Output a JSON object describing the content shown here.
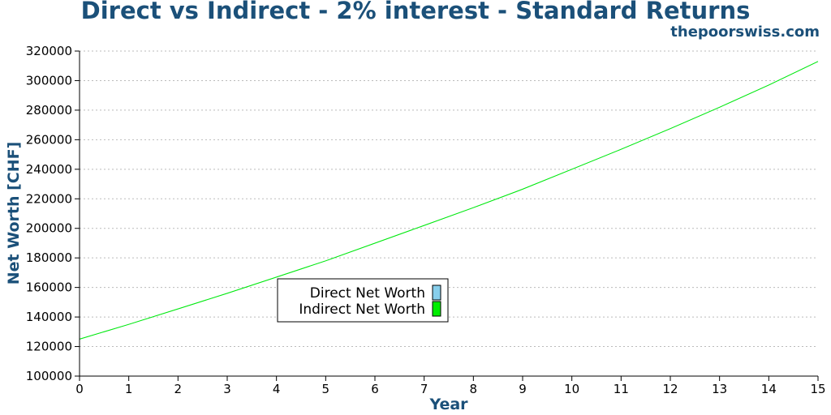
{
  "header": {
    "title": "Direct vs Indirect - 2% interest - Standard Returns",
    "site": "thepoorswiss.com"
  },
  "chart_data": {
    "type": "line",
    "title": "Direct vs Indirect - 2% interest - Standard Returns",
    "xlabel": "Year",
    "ylabel": "Net Worth [CHF]",
    "xlim": [
      0,
      15
    ],
    "ylim": [
      100000,
      320000
    ],
    "x_ticks": [
      0,
      1,
      2,
      3,
      4,
      5,
      6,
      7,
      8,
      9,
      10,
      11,
      12,
      13,
      14,
      15
    ],
    "y_ticks": [
      100000,
      120000,
      140000,
      160000,
      180000,
      200000,
      220000,
      240000,
      260000,
      280000,
      300000,
      320000
    ],
    "grid": "horizontal dotted",
    "legend_position": "center-left",
    "x": [
      0,
      1,
      2,
      3,
      4,
      5,
      6,
      7,
      8,
      9,
      10,
      11,
      12,
      13,
      14,
      15
    ],
    "series": [
      {
        "name": "Direct Net Worth",
        "color": "#87ceeb",
        "values": [
          125000,
          135000,
          145500,
          156000,
          167000,
          178000,
          190000,
          202000,
          214000,
          226500,
          240000,
          253500,
          267500,
          282000,
          297000,
          313000
        ]
      },
      {
        "name": "Indirect Net Worth",
        "color": "#00ee00",
        "values": [
          125000,
          135000,
          145500,
          156000,
          167000,
          178000,
          190000,
          202000,
          214000,
          226500,
          240000,
          253500,
          267500,
          282000,
          297000,
          313000
        ]
      }
    ]
  }
}
